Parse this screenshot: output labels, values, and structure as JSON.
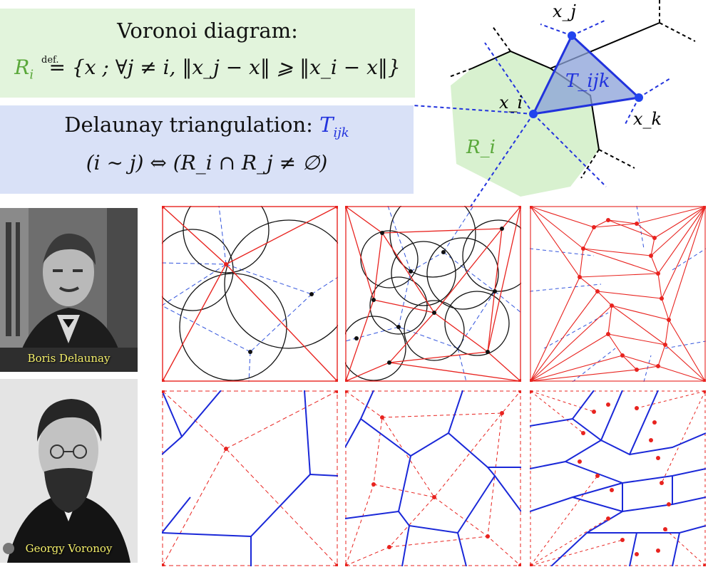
{
  "voronoi_box": {
    "title": "Voronoi diagram:",
    "formula_lhs": "R",
    "formula_lhs_sub": "i",
    "formula_def": "def.",
    "formula_rhs": "{x ; ∀j ≠ i, ‖x_j − x‖ ⩾ ‖x_i − x‖}"
  },
  "delaunay_box": {
    "title": "Delaunay triangulation:",
    "symbol": "T",
    "symbol_sub": "ijk",
    "equivalence": "(i ∼ j) ⇔ (R_i ∩ R_j ≠ ∅)"
  },
  "schematic": {
    "label_xj": "x_j",
    "label_xi": "x_i",
    "label_xk": "x_k",
    "label_Tijk": "T_ijk",
    "label_Ri": "R_i"
  },
  "portraits": [
    {
      "caption": "Boris Delaunay"
    },
    {
      "caption": "Georgy Voronoy"
    }
  ],
  "colors": {
    "voronoi_green": "#5aa83a",
    "delaunay_blue": "#2233dd",
    "triangulation_red": "#e8231f",
    "caption_yellow": "#f4ef6a"
  }
}
